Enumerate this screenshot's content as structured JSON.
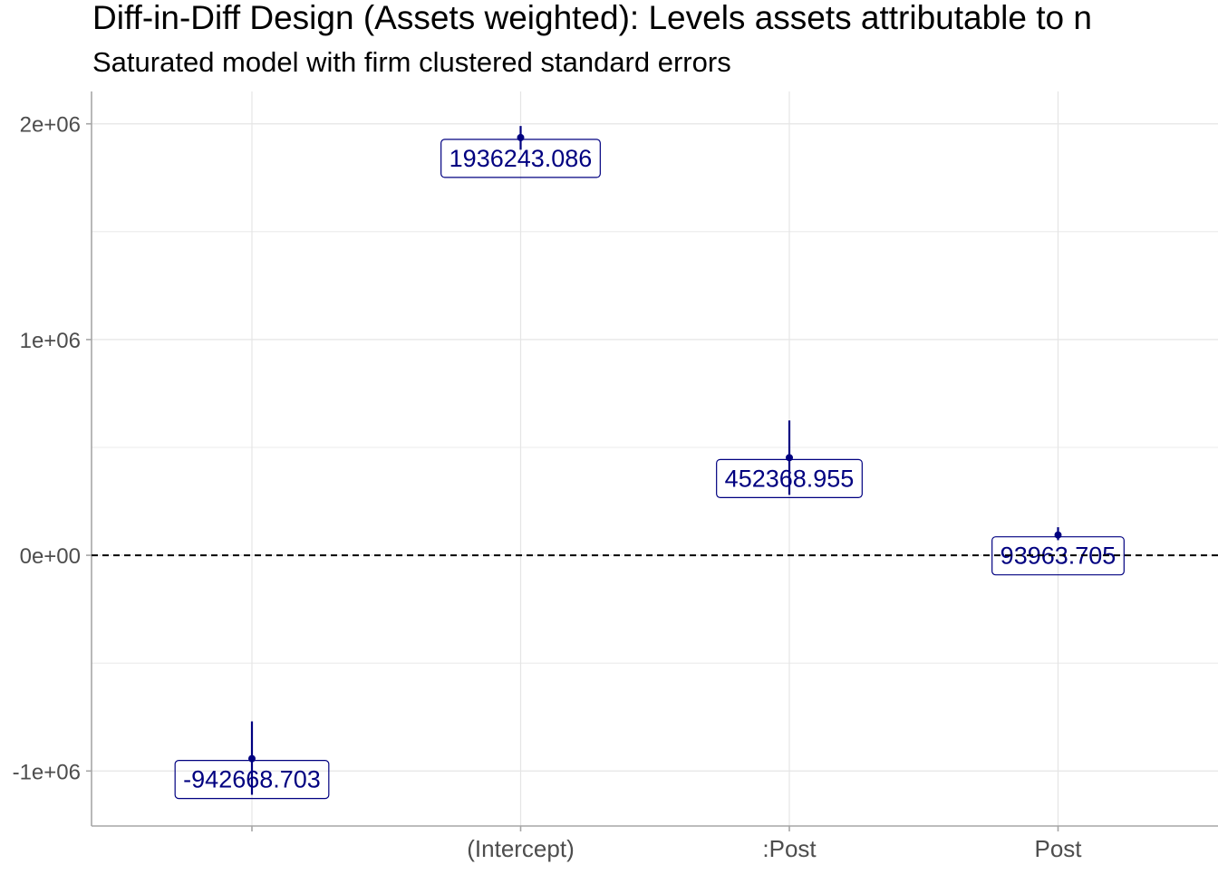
{
  "chart_data": {
    "type": "coefficient-plot",
    "title": "Diff-in-Diff Design (Assets weighted): Levels assets attributable to n",
    "subtitle": "Saturated model with firm clustered standard errors",
    "xlabel": "",
    "ylabel": "",
    "categories": [
      "",
      "(Intercept)",
      ":Post",
      "Post"
    ],
    "points": [
      {
        "term": "",
        "estimate": -942668.703,
        "ci_low": -1110000,
        "ci_high": -770000,
        "label": "-942668.703"
      },
      {
        "term": "(Intercept)",
        "estimate": 1936243.086,
        "ci_low": 1880000,
        "ci_high": 1990000,
        "label": "1936243.086"
      },
      {
        "term": ":Post",
        "estimate": 452368.955,
        "ci_low": 280000,
        "ci_high": 625000,
        "label": "452368.955"
      },
      {
        "term": "Post",
        "estimate": 93963.705,
        "ci_low": 70000,
        "ci_high": 130000,
        "label": "93963.705"
      }
    ],
    "ylim": [
      -1255000,
      2150000
    ],
    "yticks": [
      -1000000,
      0,
      1000000,
      2000000
    ],
    "ytick_labels": [
      "-1e+06",
      "0e+00",
      "1e+06",
      "2e+06"
    ],
    "reference_line": {
      "y": 0,
      "style": "dashed"
    },
    "grid": true,
    "legend": "none",
    "colors": {
      "point": "#000080",
      "errorbar": "#000080",
      "label_text": "#000080",
      "label_border": "#000080",
      "grid": "#e5e5e5",
      "axis": "#a6a6a6",
      "tick_text": "#4d4d4d",
      "title": "#000000",
      "reference_line": "#000000"
    }
  }
}
